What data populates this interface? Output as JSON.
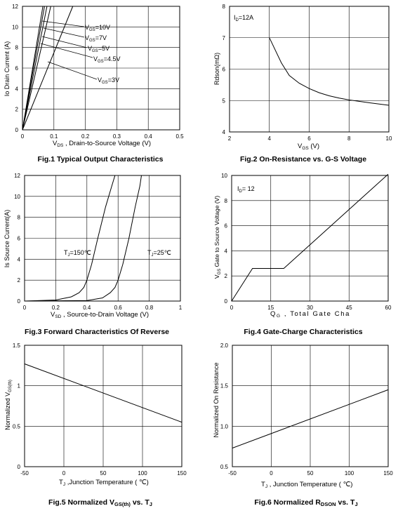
{
  "figures": {
    "fig1": {
      "caption": "Fig.1 Typical Output Characteristics"
    },
    "fig2": {
      "caption": "Fig.2 On-Resistance vs. G-S Voltage"
    },
    "fig3": {
      "caption": "Fig.3 Forward Characteristics Of Reverse"
    },
    "fig4": {
      "caption": "Fig.4 Gate-Charge Characteristics"
    },
    "fig5": {
      "caption_main": "Fig.5 Normalized V",
      "caption_sub": "GS(th)",
      "caption_tail": " vs. T",
      "caption_tail_sub": "J"
    },
    "fig6": {
      "caption_main": "Fig.6 Normalized R",
      "caption_sub": "DSON",
      "caption_tail": " vs. T",
      "caption_tail_sub": "J"
    }
  },
  "chart_data": [
    {
      "id": "fig1",
      "type": "line",
      "xlim": [
        0,
        0.5
      ],
      "ylim": [
        0,
        12
      ],
      "xticks": [
        "0",
        "0.1",
        "0.2",
        "0.3",
        "0.4",
        "0.5"
      ],
      "yticks": [
        "0",
        "2",
        "4",
        "6",
        "8",
        "10",
        "12"
      ],
      "grid": true,
      "xlabel": {
        "pre": "V",
        "sub": "DS",
        "post": " , Drain-to-Source Voltage (V)"
      },
      "ylabel": "Io Drain Current (A)",
      "series": [
        {
          "name": "VGS=10V",
          "x": [
            0,
            0.065
          ],
          "y": [
            0,
            12
          ]
        },
        {
          "name": "VGS=7V",
          "x": [
            0,
            0.07
          ],
          "y": [
            0,
            12
          ]
        },
        {
          "name": "VGS=5V",
          "x": [
            0,
            0.078
          ],
          "y": [
            0,
            12
          ]
        },
        {
          "name": "VGS=4.5V",
          "x": [
            0,
            0.09
          ],
          "y": [
            0,
            12
          ]
        },
        {
          "name": "VGS=3V",
          "x": [
            0,
            0.16
          ],
          "y": [
            0,
            12
          ]
        }
      ],
      "annotations": [
        {
          "pre": "V",
          "sub": "GS",
          "post": "=10V"
        },
        {
          "pre": "V",
          "sub": "GS",
          "post": "=7V"
        },
        {
          "pre": "V",
          "sub": "GS",
          "post": "=5V"
        },
        {
          "pre": "V",
          "sub": "GS",
          "post": "=4.5V"
        },
        {
          "pre": "V",
          "sub": "GS",
          "post": "=3V"
        }
      ]
    },
    {
      "id": "fig2",
      "type": "line",
      "xlim": [
        2,
        10
      ],
      "ylim": [
        4,
        8
      ],
      "xticks": [
        "2",
        "4",
        "6",
        "8",
        "10"
      ],
      "yticks": [
        "4",
        "5",
        "6",
        "7",
        "8"
      ],
      "grid": true,
      "xlabel": {
        "pre": "V",
        "sub": "GS",
        "post": " (V)"
      },
      "ylabel": {
        "pre": "Rdson",
        "post": "(mΩ)"
      },
      "series": [
        {
          "x": [
            4,
            4.3,
            4.6,
            5,
            5.5,
            6,
            6.5,
            7,
            7.5,
            8,
            9,
            10
          ],
          "y": [
            7,
            6.6,
            6.2,
            5.8,
            5.55,
            5.38,
            5.25,
            5.15,
            5.08,
            5.02,
            4.93,
            4.85
          ]
        }
      ],
      "annotations": [
        {
          "pre": "I",
          "sub": "D",
          "post": "=12A"
        }
      ]
    },
    {
      "id": "fig3",
      "type": "line",
      "xlim": [
        0,
        1
      ],
      "ylim": [
        0,
        12
      ],
      "xticks": [
        "0",
        "0.2",
        "0.4",
        "0.6",
        "0.8",
        "1"
      ],
      "yticks": [
        "0",
        "2",
        "4",
        "6",
        "8",
        "10",
        "12"
      ],
      "grid": true,
      "xlabel": {
        "pre": "V",
        "sub": "SD",
        "post": " , Source-to-Drain Voltage (V)"
      },
      "ylabel": "Is Source Current(A)",
      "series": [
        {
          "name": "TJ=150℃",
          "x": [
            0,
            0.2,
            0.3,
            0.35,
            0.38,
            0.4,
            0.43,
            0.47,
            0.52,
            0.56,
            0.58
          ],
          "y": [
            0,
            0.1,
            0.4,
            0.8,
            1.3,
            2,
            3.5,
            6,
            9,
            11,
            12
          ]
        },
        {
          "name": "TJ=25℃",
          "x": [
            0,
            0.4,
            0.5,
            0.55,
            0.58,
            0.6,
            0.63,
            0.67,
            0.71,
            0.74,
            0.75
          ],
          "y": [
            0,
            0.05,
            0.3,
            0.8,
            1.3,
            2,
            3.5,
            6,
            9,
            11,
            12
          ]
        }
      ],
      "annotations": [
        {
          "pre": "T",
          "sub": "J",
          "post": "=150℃"
        },
        {
          "pre": "T",
          "sub": "J",
          "post": "=25℃"
        }
      ]
    },
    {
      "id": "fig4",
      "type": "line",
      "xlim": [
        0,
        60
      ],
      "ylim": [
        0,
        10
      ],
      "xticks": [
        "0",
        "15",
        "30",
        "45",
        "60"
      ],
      "yticks": [
        "0",
        "2",
        "4",
        "6",
        "8",
        "10"
      ],
      "grid": true,
      "xlabel": {
        "pre": "Q",
        "sub": "G",
        "post": " , Total Gate Cha"
      },
      "ylabel": {
        "pre": "V",
        "sub": "GS",
        "post": " Gate to Source Voltage (V)"
      },
      "series": [
        {
          "x": [
            0,
            8,
            20,
            60
          ],
          "y": [
            0,
            2.6,
            2.6,
            10.1
          ]
        }
      ],
      "annotations": [
        {
          "pre": "I",
          "sub": "D",
          "post": "= 12"
        }
      ]
    },
    {
      "id": "fig5",
      "type": "line",
      "xlim": [
        -50,
        150
      ],
      "ylim": [
        0,
        1.5
      ],
      "xticks": [
        "-50",
        "0",
        "50",
        "100",
        "150"
      ],
      "yticks": [
        "0",
        "0.5",
        "1",
        "1.5"
      ],
      "grid": true,
      "xlabel": {
        "pre": "T",
        "sub": "J",
        "post": " ,Junction Temperature ( ℃)"
      },
      "ylabel": {
        "pre": "Normalized V",
        "sub": "GS(th)"
      },
      "series": [
        {
          "x": [
            -50,
            150
          ],
          "y": [
            1.27,
            0.55
          ]
        }
      ]
    },
    {
      "id": "fig6",
      "type": "line",
      "xlim": [
        -50,
        150
      ],
      "ylim": [
        0.5,
        2.0
      ],
      "xticks": [
        "-50",
        "0",
        "50",
        "100",
        "150"
      ],
      "yticks": [
        "0.5",
        "1.0",
        "1.5",
        "2.0"
      ],
      "grid": true,
      "xlabel": {
        "pre": "T",
        "sub": "J",
        "post": " , Junction Temperature ( ℃)"
      },
      "ylabel": "Normalized On Resistance",
      "series": [
        {
          "x": [
            -50,
            150
          ],
          "y": [
            0.73,
            1.45
          ]
        }
      ]
    }
  ]
}
